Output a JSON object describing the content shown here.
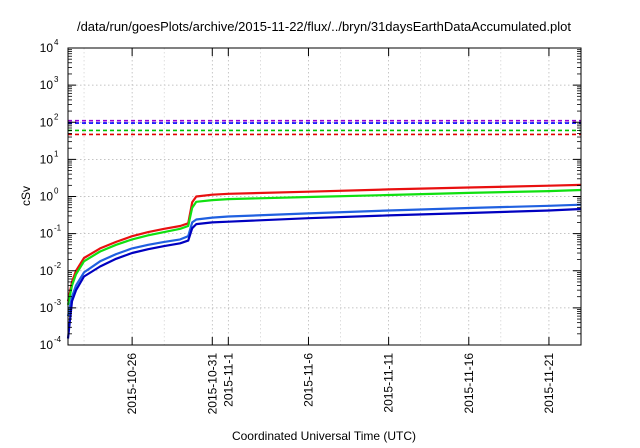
{
  "chart_data": {
    "type": "line",
    "title": "/data/run/goesPlots/archive/2015-11-22/flux/../bryn/31daysEarthDataAccumulated.plot",
    "xlabel": "Coordinated Universal Time (UTC)",
    "ylabel": "cSv",
    "x_scale": "time",
    "y_scale": "log",
    "xlim": [
      "2015-10-22",
      "2015-11-23"
    ],
    "ylim": [
      0.0001,
      10000
    ],
    "grid": true,
    "legend": "none",
    "y_ticks": [
      {
        "base": "10",
        "exp": "-4"
      },
      {
        "base": "10",
        "exp": "-3"
      },
      {
        "base": "10",
        "exp": "-2"
      },
      {
        "base": "10",
        "exp": "-1"
      },
      {
        "base": "10",
        "exp": "0"
      },
      {
        "base": "10",
        "exp": "1"
      },
      {
        "base": "10",
        "exp": "2"
      },
      {
        "base": "10",
        "exp": "3"
      },
      {
        "base": "10",
        "exp": "4"
      }
    ],
    "x_ticks": [
      {
        "date": "2015-10-26",
        "label": "2015-10-26"
      },
      {
        "date": "2015-10-31",
        "label": "2015-10-31"
      },
      {
        "date": "2015-11-01",
        "label": "2015-11-1"
      },
      {
        "date": "2015-11-06",
        "label": "2015-11-6"
      },
      {
        "date": "2015-11-11",
        "label": "2015-11-11"
      },
      {
        "date": "2015-11-16",
        "label": "2015-11-16"
      },
      {
        "date": "2015-11-21",
        "label": "2015-11-21"
      }
    ],
    "thresholds": [
      {
        "value": 110,
        "color": "#9400d3"
      },
      {
        "value": 95,
        "color": "#0000ff"
      },
      {
        "value": 60,
        "color": "#00c000"
      },
      {
        "value": 47,
        "color": "#e00000"
      }
    ],
    "series": [
      {
        "color": "#e81010",
        "x": [
          "2015-10-22",
          "2015-10-22T06:00",
          "2015-10-22T12:00",
          "2015-10-23",
          "2015-10-24",
          "2015-10-25",
          "2015-10-26",
          "2015-10-27",
          "2015-10-28",
          "2015-10-29",
          "2015-10-29T12:00",
          "2015-10-29T18:00",
          "2015-10-30",
          "2015-10-31",
          "2015-11-01",
          "2015-11-06",
          "2015-11-11",
          "2015-11-16",
          "2015-11-21",
          "2015-11-23"
        ],
        "y": [
          0.0015,
          0.005,
          0.01,
          0.022,
          0.04,
          0.06,
          0.085,
          0.11,
          0.135,
          0.16,
          0.19,
          0.7,
          1.0,
          1.12,
          1.18,
          1.35,
          1.55,
          1.75,
          1.95,
          2.05
        ]
      },
      {
        "color": "#10e010",
        "x": [
          "2015-10-22",
          "2015-10-22T06:00",
          "2015-10-22T12:00",
          "2015-10-23",
          "2015-10-24",
          "2015-10-25",
          "2015-10-26",
          "2015-10-27",
          "2015-10-28",
          "2015-10-29",
          "2015-10-29T12:00",
          "2015-10-29T18:00",
          "2015-10-30",
          "2015-10-31",
          "2015-11-01",
          "2015-11-06",
          "2015-11-11",
          "2015-11-16",
          "2015-11-21",
          "2015-11-23"
        ],
        "y": [
          0.0012,
          0.004,
          0.008,
          0.018,
          0.033,
          0.05,
          0.07,
          0.09,
          0.11,
          0.135,
          0.16,
          0.5,
          0.72,
          0.8,
          0.85,
          0.97,
          1.1,
          1.25,
          1.4,
          1.5
        ]
      },
      {
        "color": "#2060e0",
        "x": [
          "2015-10-22",
          "2015-10-22T06:00",
          "2015-10-22T12:00",
          "2015-10-23",
          "2015-10-24",
          "2015-10-25",
          "2015-10-26",
          "2015-10-27",
          "2015-10-28",
          "2015-10-29",
          "2015-10-29T12:00",
          "2015-10-29T18:00",
          "2015-10-30",
          "2015-10-31",
          "2015-11-01",
          "2015-11-06",
          "2015-11-11",
          "2015-11-16",
          "2015-11-21",
          "2015-11-23"
        ],
        "y": [
          0.0006,
          0.002,
          0.004,
          0.009,
          0.018,
          0.028,
          0.04,
          0.05,
          0.06,
          0.07,
          0.085,
          0.2,
          0.24,
          0.27,
          0.29,
          0.35,
          0.42,
          0.49,
          0.56,
          0.6
        ]
      },
      {
        "color": "#0000c0",
        "x": [
          "2015-10-22",
          "2015-10-22T06:00",
          "2015-10-22T12:00",
          "2015-10-23",
          "2015-10-24",
          "2015-10-25",
          "2015-10-26",
          "2015-10-27",
          "2015-10-28",
          "2015-10-29",
          "2015-10-29T12:00",
          "2015-10-29T18:00",
          "2015-10-30",
          "2015-10-31",
          "2015-11-01",
          "2015-11-06",
          "2015-11-11",
          "2015-11-16",
          "2015-11-21",
          "2015-11-23"
        ],
        "y": [
          0.00015,
          0.0015,
          0.003,
          0.007,
          0.013,
          0.021,
          0.03,
          0.038,
          0.046,
          0.055,
          0.065,
          0.14,
          0.18,
          0.2,
          0.21,
          0.26,
          0.31,
          0.36,
          0.42,
          0.46
        ]
      }
    ]
  }
}
